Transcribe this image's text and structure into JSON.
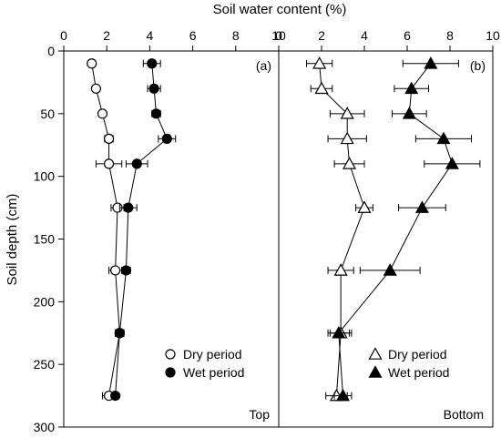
{
  "chart_data": {
    "type": "scatter",
    "xlabel": "Soil water content (%)",
    "ylabel": "Soil depth (cm)",
    "ylim": [
      0,
      300
    ],
    "y_inverted": true,
    "y_ticks": [
      0,
      50,
      100,
      150,
      200,
      250,
      300
    ],
    "grid": false,
    "panels": [
      {
        "label": "(a)",
        "corner_label": "Top",
        "xlim": [
          0,
          10
        ],
        "x_ticks": [
          0,
          2,
          4,
          6,
          8,
          10
        ],
        "legend_position": "bottom-right",
        "marker": "circle",
        "series": [
          {
            "name": "Dry period",
            "fill": "open",
            "points": [
              {
                "depth": 10,
                "value": 1.3,
                "err": 0.0
              },
              {
                "depth": 30,
                "value": 1.5,
                "err": 0.0
              },
              {
                "depth": 50,
                "value": 1.8,
                "err": 0.0
              },
              {
                "depth": 70,
                "value": 2.1,
                "err": 0.2
              },
              {
                "depth": 90,
                "value": 2.1,
                "err": 0.6
              },
              {
                "depth": 125,
                "value": 2.5,
                "err": 0.3
              },
              {
                "depth": 175,
                "value": 2.4,
                "err": 0.3
              },
              {
                "depth": 225,
                "value": 2.6,
                "err": 0.2
              },
              {
                "depth": 275,
                "value": 2.1,
                "err": 0.3
              }
            ]
          },
          {
            "name": "Wet period",
            "fill": "solid",
            "points": [
              {
                "depth": 10,
                "value": 4.1,
                "err": 0.4
              },
              {
                "depth": 30,
                "value": 4.2,
                "err": 0.3
              },
              {
                "depth": 50,
                "value": 4.3,
                "err": 0.2
              },
              {
                "depth": 70,
                "value": 4.8,
                "err": 0.4
              },
              {
                "depth": 90,
                "value": 3.4,
                "err": 0.5
              },
              {
                "depth": 125,
                "value": 3.0,
                "err": 0.4
              },
              {
                "depth": 175,
                "value": 2.9,
                "err": 0.2
              },
              {
                "depth": 225,
                "value": 2.6,
                "err": 0.2
              },
              {
                "depth": 275,
                "value": 2.4,
                "err": 0.1
              }
            ]
          }
        ]
      },
      {
        "label": "(b)",
        "corner_label": "Bottom",
        "xlim": [
          0,
          10
        ],
        "x_ticks": [
          0,
          2,
          4,
          6,
          8,
          10
        ],
        "legend_position": "bottom-right",
        "marker": "triangle",
        "series": [
          {
            "name": "Dry period",
            "fill": "open",
            "points": [
              {
                "depth": 10,
                "value": 1.9,
                "err": 0.6
              },
              {
                "depth": 30,
                "value": 2.0,
                "err": 0.5
              },
              {
                "depth": 50,
                "value": 3.2,
                "err": 0.8
              },
              {
                "depth": 70,
                "value": 3.2,
                "err": 0.9
              },
              {
                "depth": 90,
                "value": 3.3,
                "err": 0.7
              },
              {
                "depth": 125,
                "value": 4.0,
                "err": 0.4
              },
              {
                "depth": 175,
                "value": 2.9,
                "err": 0.6
              },
              {
                "depth": 225,
                "value": 2.9,
                "err": 0.5
              },
              {
                "depth": 275,
                "value": 2.7,
                "err": 0.5
              }
            ]
          },
          {
            "name": "Wet period",
            "fill": "solid",
            "points": [
              {
                "depth": 10,
                "value": 7.1,
                "err": 1.3
              },
              {
                "depth": 30,
                "value": 6.2,
                "err": 0.8
              },
              {
                "depth": 50,
                "value": 6.1,
                "err": 0.8
              },
              {
                "depth": 70,
                "value": 7.7,
                "err": 1.3
              },
              {
                "depth": 90,
                "value": 8.1,
                "err": 1.3
              },
              {
                "depth": 125,
                "value": 6.7,
                "err": 1.1
              },
              {
                "depth": 175,
                "value": 5.2,
                "err": 1.4
              },
              {
                "depth": 225,
                "value": 2.8,
                "err": 0.5
              },
              {
                "depth": 275,
                "value": 3.0,
                "err": 0.4
              }
            ]
          }
        ]
      }
    ]
  }
}
